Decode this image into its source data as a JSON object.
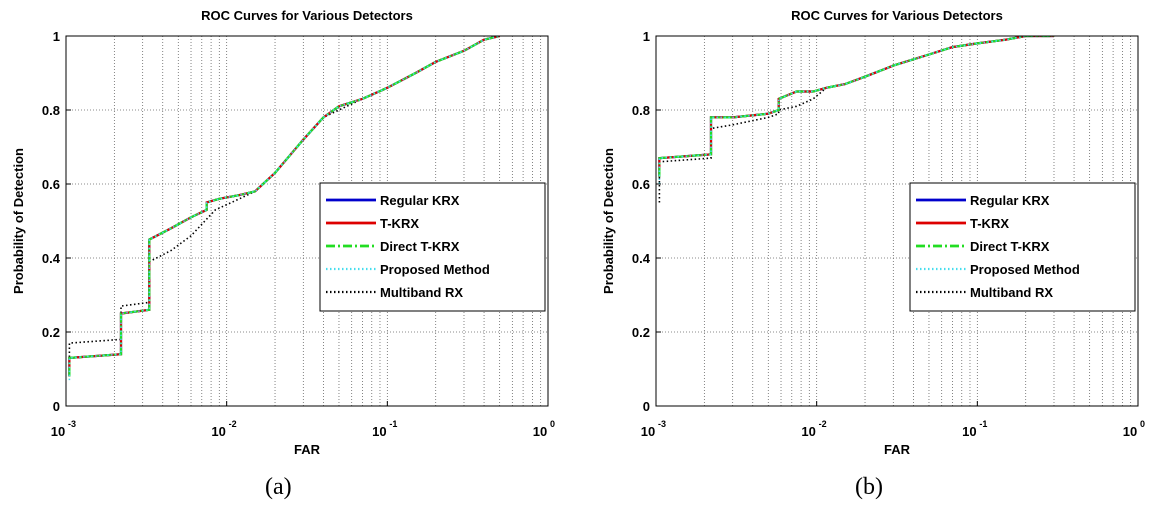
{
  "captions": [
    "(a)",
    "(b)"
  ],
  "colors": {
    "regular_krx": "#0000cc",
    "t_krx": "#dd0000",
    "direct_t_krx": "#22dd22",
    "proposed": "#44ddee",
    "multiband_rx": "#000000"
  },
  "chart_data": [
    {
      "type": "line",
      "title": "ROC Curves for Various Detectors",
      "xlabel": "FAR",
      "ylabel": "Probability of Detection",
      "xscale": "log",
      "xlim": [
        0.001,
        1
      ],
      "ylim": [
        0,
        1
      ],
      "xticks": [
        {
          "base": "10",
          "exp": "-3"
        },
        {
          "base": "10",
          "exp": "-2"
        },
        {
          "base": "10",
          "exp": "-1"
        },
        {
          "base": "10",
          "exp": "0"
        }
      ],
      "yticks": [
        "0",
        "0.2",
        "0.4",
        "0.6",
        "0.8",
        "1"
      ],
      "grid": true,
      "legend_position": "center-right",
      "series": [
        {
          "name": "Regular KRX",
          "style": "solid",
          "color": "#0000cc",
          "x": [
            0.00105,
            0.00105,
            0.0022,
            0.0022,
            0.0033,
            0.0033,
            0.0045,
            0.006,
            0.0075,
            0.0075,
            0.009,
            0.012,
            0.015,
            0.02,
            0.03,
            0.04,
            0.05,
            0.07,
            0.1,
            0.15,
            0.2,
            0.3,
            0.4,
            0.5
          ],
          "y": [
            0.08,
            0.13,
            0.14,
            0.25,
            0.26,
            0.45,
            0.48,
            0.51,
            0.53,
            0.55,
            0.56,
            0.57,
            0.58,
            0.63,
            0.72,
            0.78,
            0.81,
            0.83,
            0.86,
            0.9,
            0.93,
            0.96,
            0.99,
            1.0
          ]
        },
        {
          "name": "T-KRX",
          "style": "solid",
          "color": "#dd0000",
          "x": [
            0.00105,
            0.00105,
            0.0022,
            0.0022,
            0.0033,
            0.0033,
            0.0045,
            0.006,
            0.0075,
            0.0075,
            0.009,
            0.012,
            0.015,
            0.02,
            0.03,
            0.04,
            0.05,
            0.07,
            0.1,
            0.15,
            0.2,
            0.3,
            0.4,
            0.5
          ],
          "y": [
            0.08,
            0.13,
            0.14,
            0.25,
            0.26,
            0.45,
            0.48,
            0.51,
            0.53,
            0.55,
            0.56,
            0.57,
            0.58,
            0.63,
            0.72,
            0.78,
            0.81,
            0.83,
            0.86,
            0.9,
            0.93,
            0.96,
            0.99,
            1.0
          ]
        },
        {
          "name": "Direct T-KRX",
          "style": "dashdot",
          "color": "#22dd22",
          "x": [
            0.00105,
            0.00105,
            0.0022,
            0.0022,
            0.0033,
            0.0033,
            0.0045,
            0.006,
            0.0075,
            0.0075,
            0.009,
            0.012,
            0.015,
            0.02,
            0.03,
            0.04,
            0.05,
            0.07,
            0.1,
            0.15,
            0.2,
            0.3,
            0.4,
            0.5
          ],
          "y": [
            0.08,
            0.13,
            0.14,
            0.25,
            0.26,
            0.45,
            0.48,
            0.51,
            0.53,
            0.55,
            0.56,
            0.57,
            0.58,
            0.63,
            0.72,
            0.78,
            0.81,
            0.83,
            0.86,
            0.9,
            0.93,
            0.96,
            0.99,
            1.0
          ]
        },
        {
          "name": "Proposed Method",
          "style": "dotted",
          "color": "#44ddee",
          "x": [
            0.00105,
            0.00105,
            0.0022,
            0.0022,
            0.0033,
            0.0033,
            0.0045,
            0.006,
            0.0075,
            0.0075,
            0.009,
            0.012,
            0.015,
            0.02,
            0.03,
            0.04,
            0.05,
            0.07,
            0.1,
            0.15,
            0.2,
            0.3,
            0.4,
            0.5
          ],
          "y": [
            0.07,
            0.13,
            0.14,
            0.25,
            0.26,
            0.45,
            0.48,
            0.51,
            0.53,
            0.55,
            0.56,
            0.57,
            0.58,
            0.63,
            0.72,
            0.78,
            0.81,
            0.83,
            0.86,
            0.9,
            0.93,
            0.96,
            0.99,
            1.0
          ]
        },
        {
          "name": "Multiband RX",
          "style": "dotted",
          "color": "#000000",
          "x": [
            0.00105,
            0.00105,
            0.0022,
            0.0022,
            0.0033,
            0.0033,
            0.0045,
            0.006,
            0.0085,
            0.012,
            0.015,
            0.02,
            0.03,
            0.04,
            0.05,
            0.07,
            0.1,
            0.15,
            0.2,
            0.3,
            0.4,
            0.5
          ],
          "y": [
            0.1,
            0.17,
            0.18,
            0.27,
            0.28,
            0.39,
            0.42,
            0.46,
            0.53,
            0.56,
            0.58,
            0.63,
            0.72,
            0.78,
            0.8,
            0.83,
            0.86,
            0.9,
            0.93,
            0.96,
            0.99,
            1.0
          ]
        }
      ]
    },
    {
      "type": "line",
      "title": "ROC Curves for Various Detectors",
      "xlabel": "FAR",
      "ylabel": "Probability of Detection",
      "xscale": "log",
      "xlim": [
        0.001,
        1
      ],
      "ylim": [
        0,
        1
      ],
      "xticks": [
        {
          "base": "10",
          "exp": "-3"
        },
        {
          "base": "10",
          "exp": "-2"
        },
        {
          "base": "10",
          "exp": "-1"
        },
        {
          "base": "10",
          "exp": "0"
        }
      ],
      "yticks": [
        "0",
        "0.2",
        "0.4",
        "0.6",
        "0.8",
        "1"
      ],
      "grid": true,
      "legend_position": "center-right",
      "series": [
        {
          "name": "Regular KRX",
          "style": "solid",
          "color": "#0000cc",
          "x": [
            0.00105,
            0.00105,
            0.0022,
            0.0022,
            0.003,
            0.005,
            0.0058,
            0.0058,
            0.0075,
            0.0095,
            0.0115,
            0.015,
            0.02,
            0.03,
            0.05,
            0.07,
            0.1,
            0.15,
            0.2,
            0.3
          ],
          "y": [
            0.62,
            0.67,
            0.68,
            0.78,
            0.78,
            0.79,
            0.8,
            0.83,
            0.85,
            0.85,
            0.86,
            0.87,
            0.89,
            0.92,
            0.95,
            0.97,
            0.98,
            0.99,
            1.0,
            1.0
          ]
        },
        {
          "name": "T-KRX",
          "style": "solid",
          "color": "#dd0000",
          "x": [
            0.00105,
            0.00105,
            0.0022,
            0.0022,
            0.003,
            0.005,
            0.0058,
            0.0058,
            0.0075,
            0.0095,
            0.0115,
            0.015,
            0.02,
            0.03,
            0.05,
            0.07,
            0.1,
            0.15,
            0.2,
            0.3
          ],
          "y": [
            0.62,
            0.67,
            0.68,
            0.78,
            0.78,
            0.79,
            0.8,
            0.83,
            0.85,
            0.85,
            0.86,
            0.87,
            0.89,
            0.92,
            0.95,
            0.97,
            0.98,
            0.99,
            1.0,
            1.0
          ]
        },
        {
          "name": "Direct T-KRX",
          "style": "dashdot",
          "color": "#22dd22",
          "x": [
            0.00105,
            0.00105,
            0.0022,
            0.0022,
            0.003,
            0.005,
            0.0058,
            0.0058,
            0.0075,
            0.0095,
            0.0115,
            0.015,
            0.02,
            0.03,
            0.05,
            0.07,
            0.1,
            0.15,
            0.2,
            0.3
          ],
          "y": [
            0.62,
            0.67,
            0.68,
            0.78,
            0.78,
            0.79,
            0.8,
            0.83,
            0.85,
            0.85,
            0.86,
            0.87,
            0.89,
            0.92,
            0.95,
            0.97,
            0.98,
            0.99,
            1.0,
            1.0
          ]
        },
        {
          "name": "Proposed Method",
          "style": "dotted",
          "color": "#44ddee",
          "x": [
            0.00105,
            0.00105,
            0.0022,
            0.0022,
            0.003,
            0.005,
            0.0058,
            0.0058,
            0.0075,
            0.0095,
            0.0115,
            0.015,
            0.02,
            0.03,
            0.05,
            0.07,
            0.1,
            0.15,
            0.2,
            0.3
          ],
          "y": [
            0.6,
            0.67,
            0.68,
            0.78,
            0.78,
            0.79,
            0.8,
            0.83,
            0.85,
            0.85,
            0.86,
            0.87,
            0.89,
            0.92,
            0.95,
            0.97,
            0.98,
            0.99,
            1.0,
            1.0
          ]
        },
        {
          "name": "Multiband RX",
          "style": "dotted",
          "color": "#000000",
          "x": [
            0.00105,
            0.00105,
            0.0022,
            0.0022,
            0.003,
            0.005,
            0.0058,
            0.0058,
            0.0075,
            0.0095,
            0.0115,
            0.015,
            0.02,
            0.03,
            0.05,
            0.07,
            0.1,
            0.15,
            0.2,
            0.3
          ],
          "y": [
            0.55,
            0.66,
            0.67,
            0.75,
            0.76,
            0.78,
            0.79,
            0.8,
            0.81,
            0.83,
            0.86,
            0.87,
            0.89,
            0.92,
            0.95,
            0.97,
            0.98,
            0.99,
            1.0,
            1.0
          ]
        }
      ]
    }
  ]
}
